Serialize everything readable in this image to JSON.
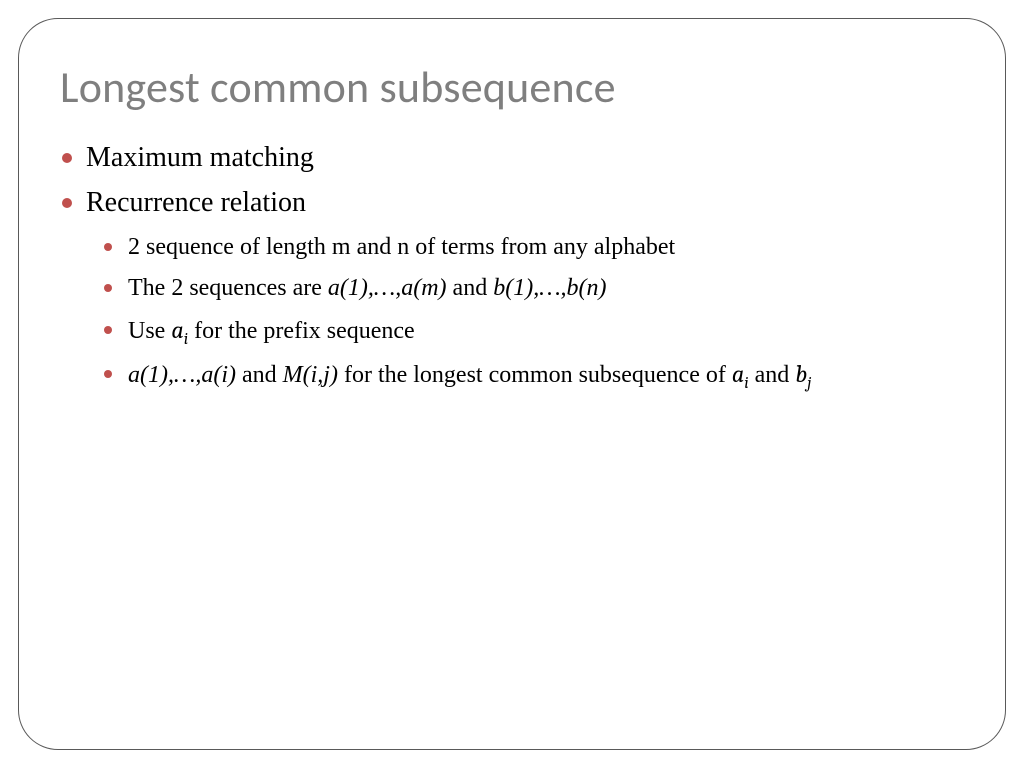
{
  "slide": {
    "title": "Longest common subsequence",
    "title_color": "#7f7f7f",
    "title_fontsize": 44,
    "bullet_color": "#c0504d",
    "border_color": "#595959",
    "border_radius": 40,
    "body_color": "#000000",
    "lvl1_fontsize": 28,
    "lvl2_fontsize": 24,
    "bullets": [
      {
        "text": "Maximum matching"
      },
      {
        "text": "Recurrence relation",
        "children": [
          {
            "parts": [
              {
                "t": "2 sequence of length m and n of terms from any alphabet"
              }
            ]
          },
          {
            "parts": [
              {
                "t": "The 2 sequences are "
              },
              {
                "t": "a(1),…,a(m)",
                "style": "italic"
              },
              {
                "t": " and "
              },
              {
                "t": "b(1),…,b(n)",
                "style": "italic"
              }
            ]
          },
          {
            "parts": [
              {
                "t": "Use "
              },
              {
                "t": "a",
                "style": "mathvar",
                "sub": "i"
              },
              {
                "t": " for the prefix sequence"
              }
            ]
          },
          {
            "parts": [
              {
                "t": "a(1),…,a(i)",
                "style": "italic"
              },
              {
                "t": " and "
              },
              {
                "t": "M(i,j)",
                "style": "italic"
              },
              {
                "t": " for the longest common subsequence of "
              },
              {
                "t": "a",
                "style": "mathvar",
                "sub": "i"
              },
              {
                "t": " and "
              },
              {
                "t": "b",
                "style": "mathvar",
                "sub": "j"
              }
            ]
          }
        ]
      }
    ]
  }
}
